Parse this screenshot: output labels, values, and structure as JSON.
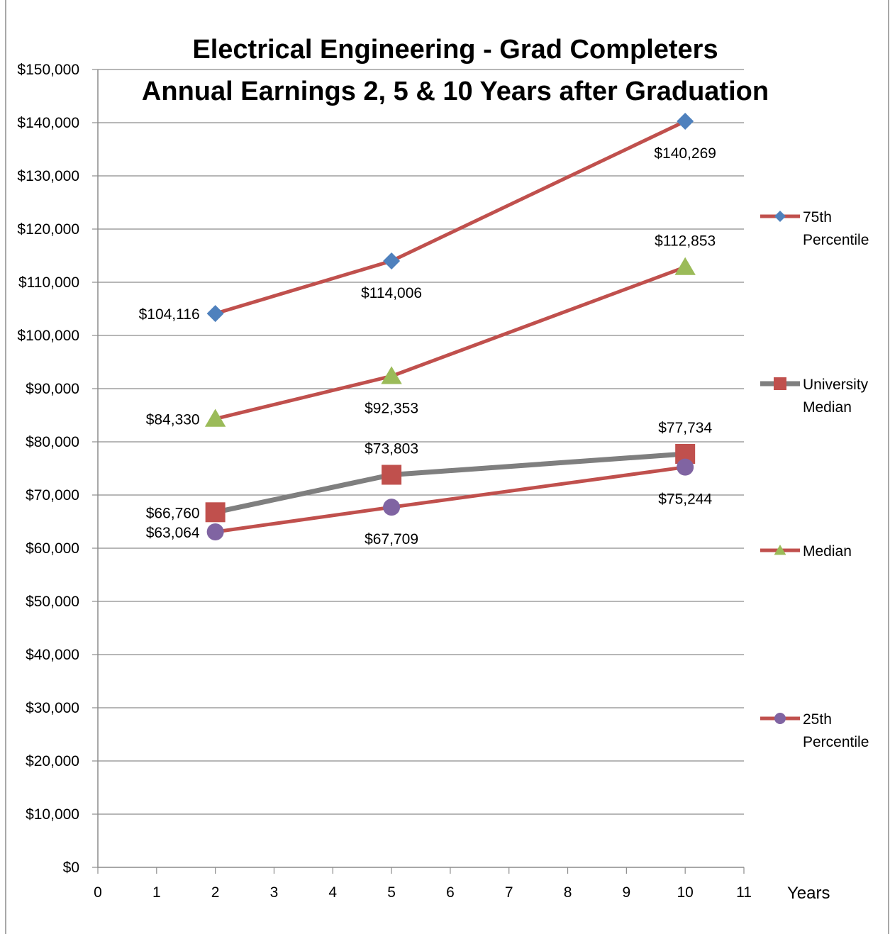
{
  "chart_data": {
    "type": "line",
    "title": "Electrical Engineering - Grad Completers",
    "subtitle": "Annual Earnings 2, 5 & 10 Years after Graduation",
    "xlabel": "Years",
    "ylabel": "",
    "xlim": [
      0,
      11
    ],
    "ylim": [
      0,
      150000
    ],
    "x_ticks": [
      "0",
      "1",
      "2",
      "3",
      "4",
      "5",
      "6",
      "7",
      "8",
      "9",
      "10",
      "11"
    ],
    "y_ticks": [
      "$0",
      "$10,000",
      "$20,000",
      "$30,000",
      "$40,000",
      "$50,000",
      "$60,000",
      "$70,000",
      "$80,000",
      "$90,000",
      "$100,000",
      "$110,000",
      "$120,000",
      "$130,000",
      "$140,000",
      "$150,000"
    ],
    "grid": "horizontal",
    "legend_position": "right",
    "x": [
      2,
      5,
      10
    ],
    "series": [
      {
        "name": "75th Percentile",
        "name_lines": [
          "75th",
          "Percentile"
        ],
        "values": [
          104116,
          114006,
          140269
        ],
        "labels": [
          "$104,116",
          "$114,006",
          "$140,269"
        ],
        "line_color": "#C0504D",
        "marker": "diamond",
        "marker_color": "#4F81BD"
      },
      {
        "name": "University Median",
        "name_lines": [
          "University",
          "Median"
        ],
        "values": [
          66760,
          73803,
          77734
        ],
        "labels": [
          "$66,760",
          "$73,803",
          "$77,734"
        ],
        "line_color": "#7F7F7F",
        "marker": "square",
        "marker_color": "#C0504D"
      },
      {
        "name": "Median",
        "name_lines": [
          "Median"
        ],
        "values": [
          84330,
          92353,
          112853
        ],
        "labels": [
          "$84,330",
          "$92,353",
          "$112,853"
        ],
        "line_color": "#C0504D",
        "marker": "triangle",
        "marker_color": "#9BBB59"
      },
      {
        "name": "25th Percentile",
        "name_lines": [
          "25th",
          "Percentile"
        ],
        "values": [
          63064,
          67709,
          75244
        ],
        "labels": [
          "$63,064",
          "$67,709",
          "$75,244"
        ],
        "line_color": "#C0504D",
        "marker": "circle",
        "marker_color": "#8064A2"
      }
    ]
  }
}
